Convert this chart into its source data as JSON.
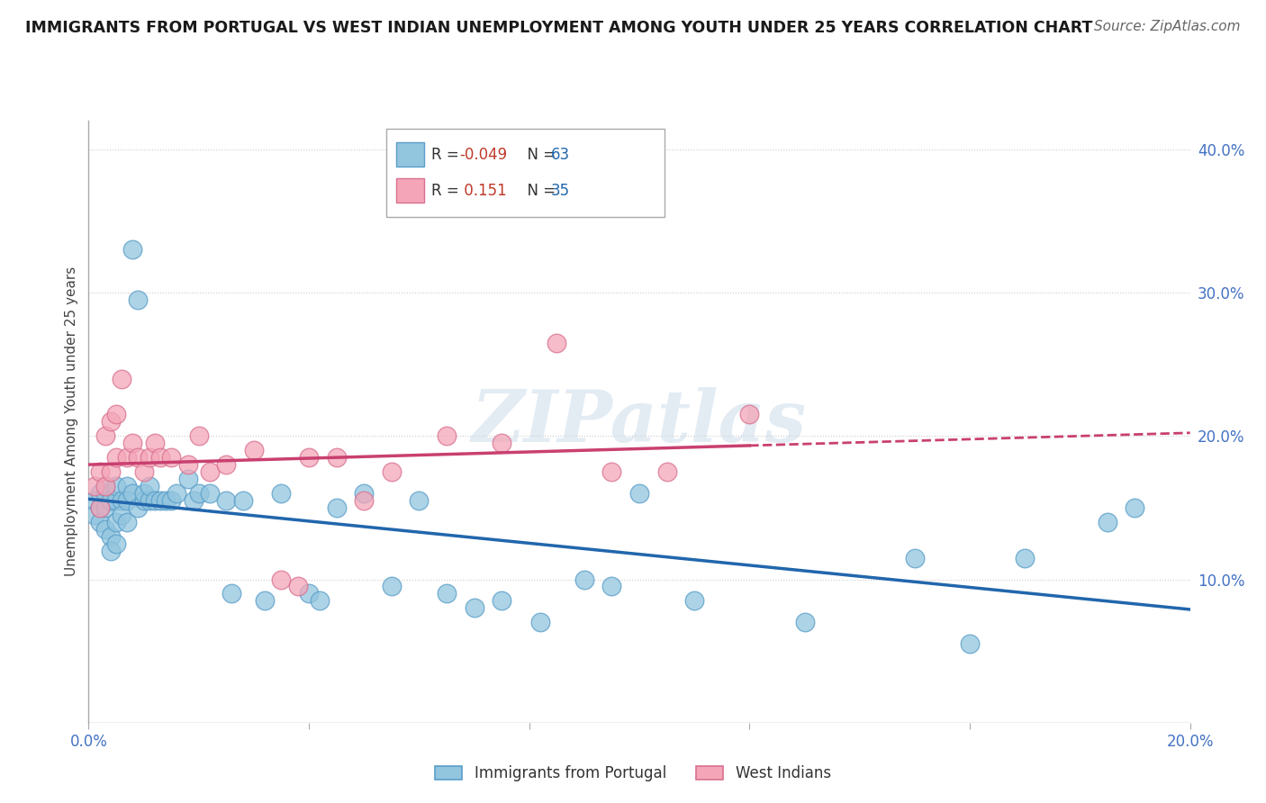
{
  "title": "IMMIGRANTS FROM PORTUGAL VS WEST INDIAN UNEMPLOYMENT AMONG YOUTH UNDER 25 YEARS CORRELATION CHART",
  "source": "Source: ZipAtlas.com",
  "ylabel": "Unemployment Among Youth under 25 years",
  "xlim": [
    0.0,
    0.2
  ],
  "ylim": [
    0.0,
    0.42
  ],
  "blue_color": "#92c5de",
  "pink_color": "#f4a6b8",
  "blue_edge_color": "#5a9ec9",
  "pink_edge_color": "#d97090",
  "blue_line_color": "#2166ac",
  "pink_line_color": "#c94070",
  "watermark": "ZIPatlas",
  "r_blue": "-0.049",
  "n_blue": "63",
  "r_pink": "0.151",
  "n_pink": "35",
  "blue_x": [
    0.001,
    0.001,
    0.002,
    0.002,
    0.002,
    0.003,
    0.003,
    0.003,
    0.003,
    0.004,
    0.004,
    0.004,
    0.005,
    0.005,
    0.005,
    0.005,
    0.006,
    0.006,
    0.007,
    0.007,
    0.007,
    0.008,
    0.008,
    0.009,
    0.009,
    0.01,
    0.01,
    0.011,
    0.011,
    0.012,
    0.013,
    0.014,
    0.015,
    0.016,
    0.018,
    0.019,
    0.02,
    0.022,
    0.025,
    0.026,
    0.028,
    0.032,
    0.035,
    0.04,
    0.042,
    0.045,
    0.05,
    0.055,
    0.06,
    0.065,
    0.07,
    0.075,
    0.082,
    0.09,
    0.095,
    0.1,
    0.11,
    0.13,
    0.15,
    0.16,
    0.17,
    0.185,
    0.19
  ],
  "blue_y": [
    0.155,
    0.145,
    0.16,
    0.15,
    0.14,
    0.16,
    0.165,
    0.15,
    0.135,
    0.155,
    0.13,
    0.12,
    0.155,
    0.14,
    0.165,
    0.125,
    0.155,
    0.145,
    0.165,
    0.155,
    0.14,
    0.33,
    0.16,
    0.15,
    0.295,
    0.155,
    0.16,
    0.155,
    0.165,
    0.155,
    0.155,
    0.155,
    0.155,
    0.16,
    0.17,
    0.155,
    0.16,
    0.16,
    0.155,
    0.09,
    0.155,
    0.085,
    0.16,
    0.09,
    0.085,
    0.15,
    0.16,
    0.095,
    0.155,
    0.09,
    0.08,
    0.085,
    0.07,
    0.1,
    0.095,
    0.16,
    0.085,
    0.07,
    0.115,
    0.055,
    0.115,
    0.14,
    0.15
  ],
  "pink_x": [
    0.001,
    0.002,
    0.002,
    0.003,
    0.003,
    0.004,
    0.004,
    0.005,
    0.005,
    0.006,
    0.007,
    0.008,
    0.009,
    0.01,
    0.011,
    0.012,
    0.013,
    0.015,
    0.018,
    0.02,
    0.022,
    0.025,
    0.03,
    0.035,
    0.038,
    0.04,
    0.045,
    0.05,
    0.055,
    0.065,
    0.075,
    0.085,
    0.095,
    0.105,
    0.12
  ],
  "pink_y": [
    0.165,
    0.175,
    0.15,
    0.2,
    0.165,
    0.21,
    0.175,
    0.215,
    0.185,
    0.24,
    0.185,
    0.195,
    0.185,
    0.175,
    0.185,
    0.195,
    0.185,
    0.185,
    0.18,
    0.2,
    0.175,
    0.18,
    0.19,
    0.1,
    0.095,
    0.185,
    0.185,
    0.155,
    0.175,
    0.2,
    0.195,
    0.265,
    0.175,
    0.175,
    0.215
  ]
}
